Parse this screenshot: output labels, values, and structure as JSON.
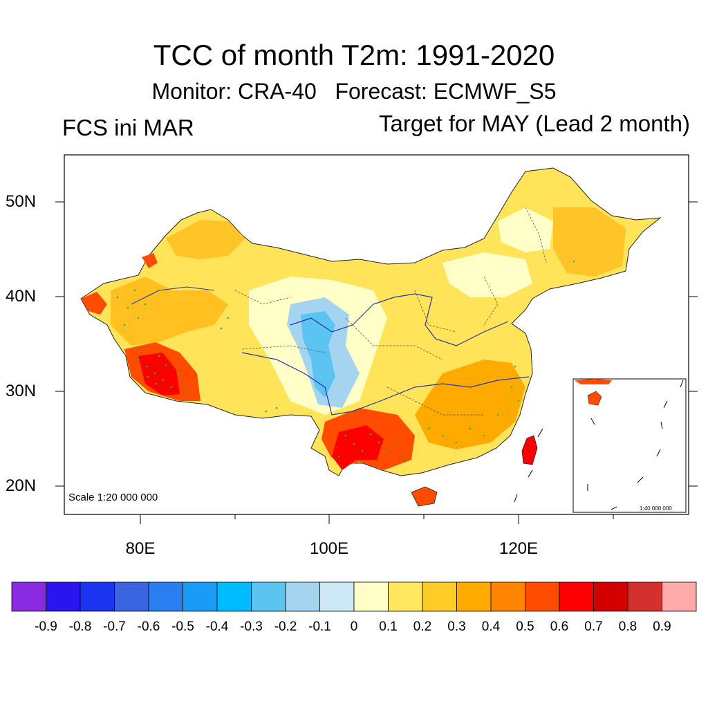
{
  "header": {
    "title": "TCC of month T2m: 1991-2020",
    "subtitle": "Monitor: CRA-40   Forecast: ECMWF_S5",
    "left_label": "FCS ini MAR",
    "right_label": "Target for MAY (Lead 2 month)"
  },
  "map": {
    "lat_ticks": [
      "50N",
      "40N",
      "30N",
      "20N"
    ],
    "lon_ticks": [
      "80E",
      "100E",
      "120E"
    ],
    "scale_label": "Scale 1:20 000 000",
    "inset_scale_label": "1:40 000 000"
  },
  "colorbar": {
    "labels": [
      "-0.9",
      "-0.8",
      "-0.7",
      "-0.6",
      "-0.5",
      "-0.4",
      "-0.3",
      "-0.2",
      "-0.1",
      "0",
      "0.1",
      "0.2",
      "0.3",
      "0.4",
      "0.5",
      "0.6",
      "0.7",
      "0.8",
      "0.9"
    ],
    "colors": [
      "#8a2be2",
      "#2a14f0",
      "#1a34f0",
      "#3a64e0",
      "#2a7ef0",
      "#1a9cf6",
      "#00bcff",
      "#5cc4f0",
      "#a4d4f0",
      "#cce8f6",
      "#ffffc8",
      "#ffe860",
      "#ffcc28",
      "#ffaa00",
      "#ff8400",
      "#ff4c00",
      "#ff0000",
      "#d40000",
      "#d43030",
      "#ffaaaa"
    ]
  }
}
